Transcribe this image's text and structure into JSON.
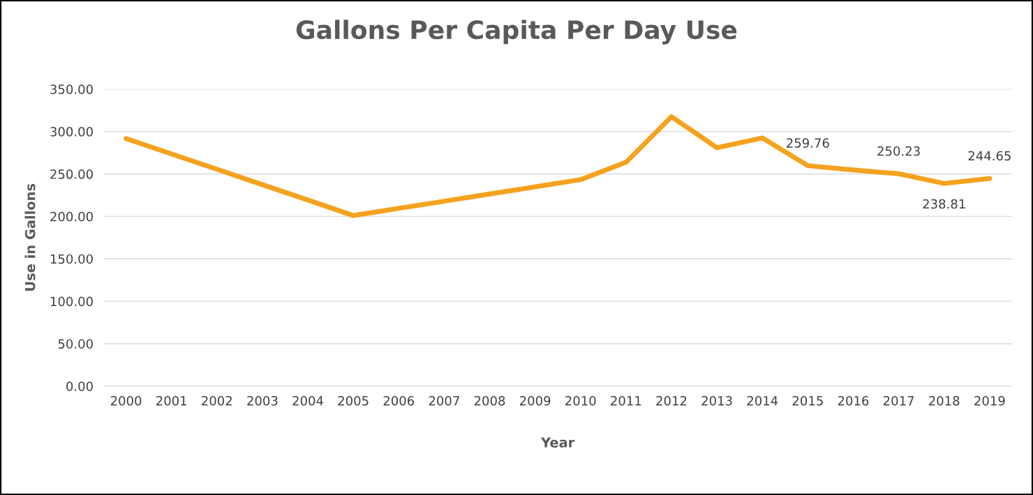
{
  "chart_data": {
    "type": "line",
    "title": "Gallons Per Capita Per Day Use",
    "xlabel": "Year",
    "ylabel": "Use in Gallons",
    "categories": [
      "2000",
      "2001",
      "2002",
      "2003",
      "2004",
      "2005",
      "2006",
      "2007",
      "2008",
      "2009",
      "2010",
      "2011",
      "2012",
      "2013",
      "2014",
      "2015",
      "2016",
      "2017",
      "2018",
      "2019"
    ],
    "series": [
      {
        "color": "#f5a21e",
        "values": [
          291.7,
          273.6,
          255.5,
          237.4,
          219.3,
          201,
          209.5,
          217.9,
          226.4,
          234.8,
          243.3,
          263.7,
          317.5,
          281,
          292.5,
          259.76,
          254.8,
          250.23,
          238.81,
          244.65
        ],
        "value_labels": [
          null,
          null,
          null,
          null,
          null,
          null,
          null,
          null,
          null,
          null,
          null,
          null,
          null,
          null,
          null,
          "259.76",
          null,
          "250.23",
          "238.81",
          "244.65"
        ]
      }
    ],
    "ylim": [
      0,
      350
    ],
    "yticks": [
      {
        "value": 0,
        "label": "0.00"
      },
      {
        "value": 50,
        "label": "50.00"
      },
      {
        "value": 100,
        "label": "100.00"
      },
      {
        "value": 150,
        "label": "150.00"
      },
      {
        "value": 200,
        "label": "200.00"
      },
      {
        "value": 250,
        "label": "250.00"
      },
      {
        "value": 300,
        "label": "300.00"
      },
      {
        "value": 350,
        "label": "350.00"
      }
    ],
    "grid": "y",
    "marker": "none",
    "line_style": "solid"
  }
}
